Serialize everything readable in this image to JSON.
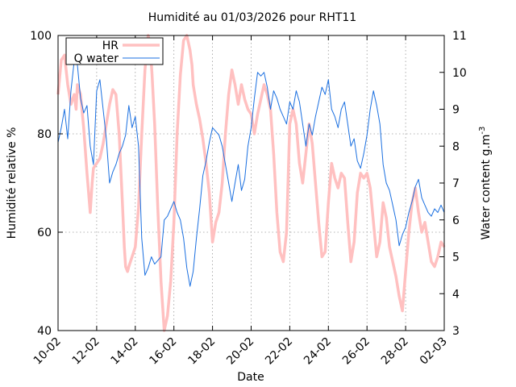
{
  "chart_data": {
    "type": "line",
    "title": "Humidité au 01/03/2026 pour RHT11",
    "xlabel": "Date",
    "ylabel": "Humidité relative %",
    "y2label_main": "Water content g.m",
    "y2label_sup": "-3",
    "grid": true,
    "legend_position": "top-left",
    "x_tick_labels": [
      "10-02",
      "12-02",
      "14-02",
      "16-02",
      "18-02",
      "20-02",
      "22-02",
      "24-02",
      "26-02",
      "28-02",
      "02-03"
    ],
    "ylim": [
      40,
      100
    ],
    "y_ticks": [
      "40",
      "60",
      "80",
      "100"
    ],
    "y2lim": [
      3,
      11
    ],
    "y2_ticks": [
      "3",
      "4",
      "5",
      "6",
      "7",
      "8",
      "9",
      "10",
      "11"
    ],
    "series": [
      {
        "name": "HR",
        "axis": "left",
        "color": "#ffc0c0",
        "x": [
          0,
          0.5,
          1.0,
          1.5,
          2.0,
          2.5,
          2.8,
          3.0,
          3.5,
          4.0,
          4.5,
          5.0,
          5.3,
          5.5,
          6.0,
          6.5,
          7.0,
          7.5,
          8.0,
          8.5,
          9.0,
          9.5,
          10.0,
          10.3,
          10.5,
          10.8,
          11.0,
          11.5,
          12.0,
          12.5,
          13.0,
          13.5,
          14.0,
          14.3,
          14.6,
          15.0,
          15.5,
          16.0,
          16.5,
          17.0,
          17.5,
          18.0,
          18.5,
          19.0,
          19.5,
          20.0,
          20.5,
          20.8,
          21.0,
          21.5,
          22.0,
          22.5,
          23.0,
          23.5,
          24.0,
          24.5,
          25.0,
          25.5,
          26.0,
          26.5,
          27.0,
          27.5,
          28.0,
          28.5,
          29.0,
          29.5,
          30.0,
          30.5,
          31.0,
          31.5,
          32.0,
          32.5,
          33.0,
          33.5,
          34.0,
          34.5,
          35.0,
          35.5,
          36.0,
          36.5,
          37.0,
          37.5,
          38.0,
          38.5,
          39.0,
          39.5,
          40.0,
          40.5,
          41.0,
          41.5,
          42.0,
          42.5,
          43.0,
          43.5,
          44.0,
          44.5,
          45.0,
          45.5,
          46.0,
          46.5,
          47.0,
          47.5,
          48.0,
          48.5,
          49.0,
          49.5,
          50.0,
          50.5,
          51.0,
          51.5,
          52.0,
          52.5,
          53.0,
          53.5,
          54.0,
          54.5,
          55.0,
          55.5,
          56.0,
          56.5,
          57.0,
          57.5,
          58.0,
          58.5,
          59.0,
          59.5,
          60.0
        ],
        "values": [
          88,
          95,
          96,
          90,
          86,
          88,
          85,
          90,
          88,
          81,
          72,
          64,
          70,
          73,
          74,
          75,
          78,
          82,
          86,
          89,
          88,
          80,
          66,
          57,
          53,
          52,
          53,
          55,
          57,
          65,
          80,
          93,
          100,
          98,
          92,
          82,
          65,
          50,
          40,
          43,
          50,
          62,
          80,
          92,
          99,
          100,
          97,
          94,
          90,
          86,
          83,
          79,
          74,
          68,
          58,
          62,
          64,
          70,
          80,
          88,
          93,
          90,
          86,
          90,
          87,
          85,
          84,
          80,
          84,
          87,
          90,
          88,
          85,
          76,
          64,
          56,
          54,
          60,
          82,
          85,
          82,
          74,
          70,
          76,
          82,
          78,
          70,
          62,
          55,
          56,
          66,
          74,
          71,
          69,
          72,
          71,
          62,
          54,
          58,
          68,
          72,
          71,
          72,
          69,
          62,
          55,
          58,
          66,
          63,
          57,
          54,
          51,
          47,
          44,
          52,
          60,
          66,
          69,
          64,
          60,
          62,
          58,
          54,
          53,
          55,
          58,
          57
        ]
      },
      {
        "name": "Q water",
        "axis": "right",
        "color": "#1a6fe0",
        "x": [
          0,
          0.5,
          1.0,
          1.5,
          2.0,
          2.5,
          3.0,
          3.5,
          4.0,
          4.5,
          5.0,
          5.5,
          6.0,
          6.5,
          7.0,
          7.5,
          8.0,
          8.5,
          9.0,
          9.5,
          10.0,
          10.5,
          11.0,
          11.5,
          12.0,
          12.5,
          13.0,
          13.5,
          14.0,
          14.5,
          15.0,
          15.5,
          16.0,
          16.5,
          17.0,
          17.5,
          18.0,
          18.5,
          19.0,
          19.5,
          20.0,
          20.5,
          21.0,
          21.5,
          22.0,
          22.5,
          23.0,
          23.5,
          24.0,
          24.5,
          25.0,
          25.5,
          26.0,
          26.5,
          27.0,
          27.5,
          28.0,
          28.5,
          29.0,
          29.5,
          30.0,
          30.5,
          31.0,
          31.5,
          32.0,
          32.5,
          33.0,
          33.5,
          34.0,
          34.5,
          35.0,
          35.5,
          36.0,
          36.5,
          37.0,
          37.5,
          38.0,
          38.5,
          39.0,
          39.5,
          40.0,
          40.5,
          41.0,
          41.5,
          42.0,
          42.5,
          43.0,
          43.5,
          44.0,
          44.5,
          45.0,
          45.5,
          46.0,
          46.5,
          47.0,
          47.5,
          48.0,
          48.5,
          49.0,
          49.5,
          50.0,
          50.5,
          51.0,
          51.5,
          52.0,
          52.5,
          53.0,
          53.5,
          54.0,
          54.5,
          55.0,
          55.5,
          56.0,
          56.5,
          57.0,
          57.5,
          58.0,
          58.5,
          59.0,
          59.5,
          60.0
        ],
        "values": [
          8.1,
          8.5,
          9.0,
          8.2,
          9.5,
          10.3,
          10.2,
          9.3,
          8.9,
          9.1,
          8.0,
          7.5,
          9.5,
          9.8,
          9.0,
          8.2,
          7.0,
          7.3,
          7.5,
          7.8,
          8.0,
          8.3,
          9.1,
          8.5,
          8.8,
          8.0,
          5.5,
          4.5,
          4.7,
          5.0,
          4.8,
          4.9,
          5.0,
          6.0,
          6.1,
          6.3,
          6.5,
          6.2,
          6.0,
          5.5,
          4.7,
          4.2,
          4.6,
          5.5,
          6.3,
          7.2,
          7.6,
          8.1,
          8.5,
          8.4,
          8.3,
          8.0,
          7.5,
          7.0,
          6.5,
          7.0,
          7.5,
          6.8,
          7.1,
          8.0,
          8.5,
          9.3,
          10.0,
          9.9,
          10.0,
          9.6,
          9.0,
          9.5,
          9.3,
          9.0,
          8.8,
          8.6,
          9.2,
          9.0,
          9.5,
          9.2,
          8.6,
          8.0,
          8.6,
          8.3,
          8.8,
          9.2,
          9.6,
          9.4,
          9.8,
          9.0,
          8.8,
          8.5,
          9.0,
          9.2,
          8.6,
          8.0,
          8.2,
          7.6,
          7.4,
          7.8,
          8.3,
          9.0,
          9.5,
          9.1,
          8.6,
          7.5,
          7.0,
          6.8,
          6.4,
          6.0,
          5.3,
          5.6,
          5.8,
          6.2,
          6.5,
          6.9,
          7.1,
          6.6,
          6.4,
          6.2,
          6.1,
          6.3,
          6.2,
          6.4,
          6.2
        ]
      }
    ]
  }
}
